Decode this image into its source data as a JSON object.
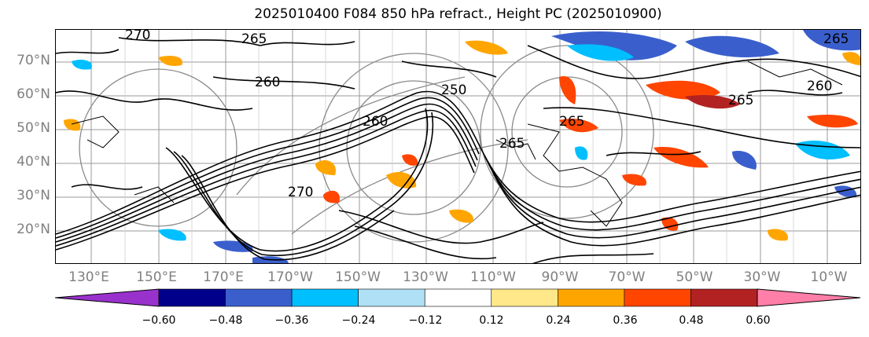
{
  "title": "2025010400 F084 850 hPa refract., Height PC (2025010900)",
  "lat_labels": [
    "70°N",
    "60°N",
    "50°N",
    "40°N",
    "30°N",
    "20°N"
  ],
  "lon_labels": [
    "130°E",
    "150°E",
    "170°E",
    "170°W",
    "150°W",
    "130°W",
    "110°W",
    "90°W",
    "70°W",
    "50°W",
    "30°W",
    "10°W"
  ],
  "contour_labels": [
    "270",
    "265",
    "260",
    "250",
    "260",
    "265",
    "265",
    "265",
    "265",
    "260",
    "270"
  ],
  "colorbar": {
    "colors": [
      "#9932cc",
      "#00008b",
      "#3a5fcd",
      "#00bfff",
      "#b0e0f5",
      "#ffffff",
      "#ffe88a",
      "#ffa500",
      "#ff4500",
      "#b22222",
      "#ff7fa8"
    ],
    "tick_labels": [
      "−0.60",
      "−0.48",
      "−0.36",
      "−0.24",
      "−0.12",
      "0.12",
      "0.24",
      "0.36",
      "0.48",
      "0.60"
    ]
  }
}
